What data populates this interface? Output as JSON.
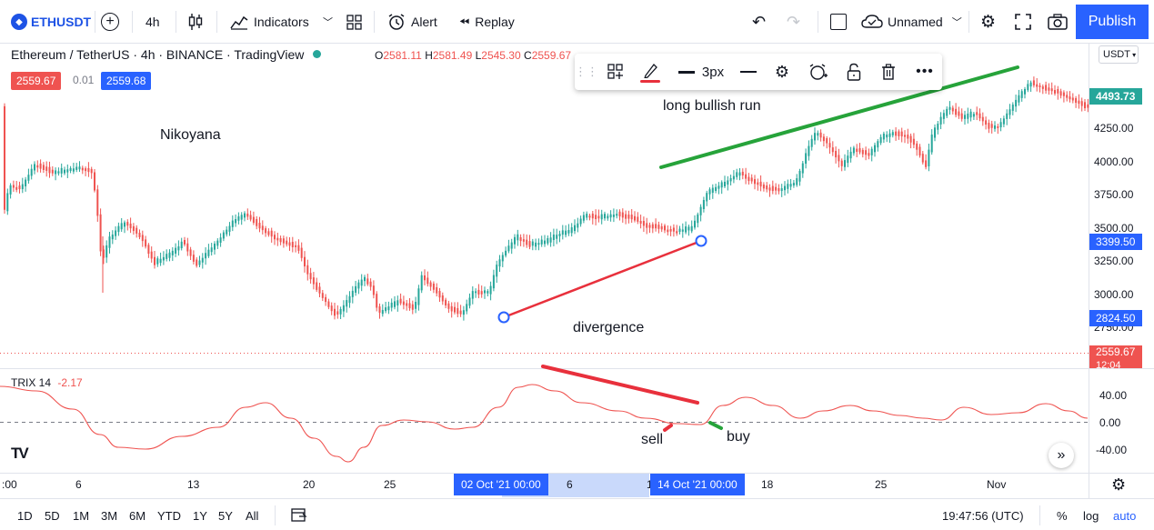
{
  "toolbar": {
    "symbol": "ETHUSDT",
    "interval": "4h",
    "indicators_label": "Indicators",
    "alert_label": "Alert",
    "replay_label": "Replay",
    "layout_name": "Unnamed",
    "publish_label": "Publish"
  },
  "legend": {
    "title": "Ethereum / TetherUS · 4h · BINANCE · TradingView",
    "o_key": "O",
    "o_val": "2581.11",
    "h_key": "H",
    "h_val": "2581.49",
    "l_key": "L",
    "l_val": "2545.30",
    "c_key": "C",
    "c_val": "2559.67",
    "bid": "2559.67",
    "spread": "0.01",
    "ask": "2559.68"
  },
  "drawbar": {
    "width_label": "3px"
  },
  "currency": "USDT",
  "annotations": {
    "nikoyana": "Nikoyana",
    "bullish": "long bullish run",
    "divergence": "divergence",
    "sell": "sell",
    "buy": "buy"
  },
  "yaxis": {
    "ticks": [
      "4250.00",
      "4000.00",
      "3750.00",
      "3500.00",
      "3250.00",
      "3000.00",
      "2750.00"
    ],
    "box_top": "4493.73",
    "box_3399": "3399.50",
    "box_2824": "2824.50",
    "box_last": "2559.67",
    "box_last_time": "12:04",
    "trix_ticks": [
      "40.00",
      "0.00",
      "-40.00"
    ]
  },
  "trix": {
    "name": "TRIX 14",
    "value": "-2.17"
  },
  "xaxis": {
    "ticks": [
      ":00",
      "6",
      "13",
      "20",
      "25",
      "6",
      "18",
      "25",
      "Nov"
    ],
    "box1": "02 Oct '21   00:00",
    "box2": "14 Oct '21   00:00",
    "partial": "1"
  },
  "bottombar": {
    "ranges": [
      "1D",
      "5D",
      "1M",
      "3M",
      "6M",
      "YTD",
      "1Y",
      "5Y",
      "All"
    ],
    "clock": "19:47:56 (UTC)",
    "percent": "%",
    "log": "log",
    "auto": "auto"
  },
  "colors": {
    "up": "#26a69a",
    "down": "#ef5350",
    "accent": "#2962ff",
    "trend_green": "#26a33a",
    "trend_red": "#e8303c"
  }
}
